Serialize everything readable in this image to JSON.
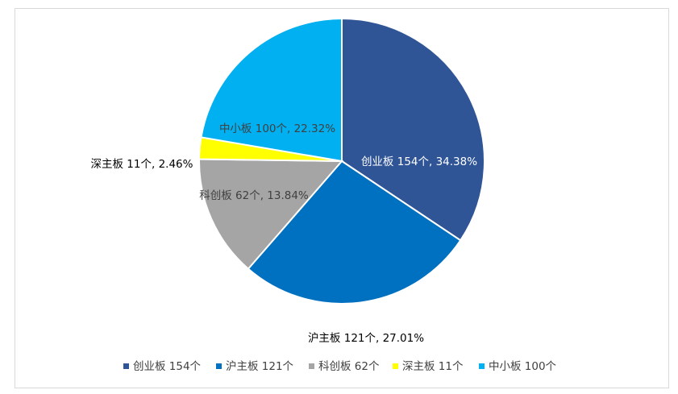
{
  "chart_data": {
    "type": "pie",
    "title": "",
    "slices": [
      {
        "name": "创业板",
        "count": "154个",
        "value": 154,
        "percent": "34.38%",
        "color": "#2f5597",
        "label_color": "#ffffff"
      },
      {
        "name": "沪主板",
        "count": "121个",
        "value": 121,
        "percent": "27.01%",
        "color": "#0070c0",
        "label_color": "#000000"
      },
      {
        "name": "科创板",
        "count": "62个",
        "value": 62,
        "percent": "13.84%",
        "color": "#a5a5a5",
        "label_color": "#404040"
      },
      {
        "name": "深主板",
        "count": "11个",
        "value": 11,
        "percent": "2.46%",
        "color": "#ffff00",
        "label_color": "#000000"
      },
      {
        "name": "中小板",
        "count": "100个",
        "value": 100,
        "percent": "22.32%",
        "color": "#00b0f0",
        "label_color": "#404040"
      }
    ],
    "legend": {
      "position": "bottom",
      "items": [
        "创业板 154个",
        "沪主板 121个",
        "科创板 62个",
        "深主板 11个",
        "中小板 100个"
      ]
    },
    "data_labels": [
      "创业板 154个, 34.38%",
      "沪主板 121个, 27.01%",
      "科创板 62个, 13.84%",
      "深主板 11个, 2.46%",
      "中小板 100个, 22.32%"
    ]
  }
}
